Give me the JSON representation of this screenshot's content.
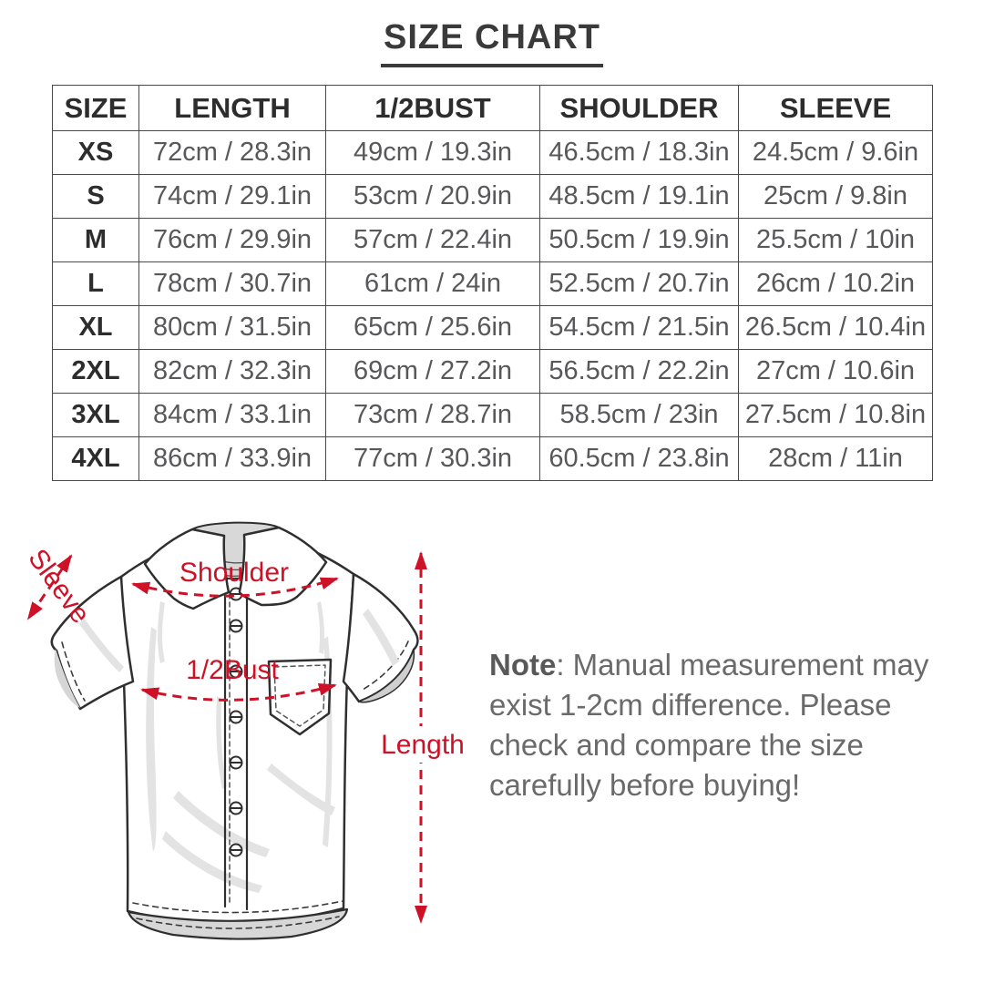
{
  "title": "SIZE CHART",
  "chart_data": {
    "type": "table",
    "title": "SIZE CHART",
    "columns": [
      "SIZE",
      "LENGTH",
      "1/2BUST",
      "SHOULDER",
      "SLEEVE"
    ],
    "rows": [
      [
        "XS",
        "72cm / 28.3in",
        "49cm / 19.3in",
        "46.5cm / 18.3in",
        "24.5cm / 9.6in"
      ],
      [
        "S",
        "74cm / 29.1in",
        "53cm / 20.9in",
        "48.5cm / 19.1in",
        "25cm / 9.8in"
      ],
      [
        "M",
        "76cm / 29.9in",
        "57cm / 22.4in",
        "50.5cm / 19.9in",
        "25.5cm / 10in"
      ],
      [
        "L",
        "78cm / 30.7in",
        "61cm / 24in",
        "52.5cm / 20.7in",
        "26cm / 10.2in"
      ],
      [
        "XL",
        "80cm / 31.5in",
        "65cm / 25.6in",
        "54.5cm / 21.5in",
        "26.5cm / 10.4in"
      ],
      [
        "2XL",
        "82cm / 32.3in",
        "69cm / 27.2in",
        "56.5cm / 22.2in",
        "27cm / 10.6in"
      ],
      [
        "3XL",
        "84cm / 33.1in",
        "73cm / 28.7in",
        "58.5cm / 23in",
        "27.5cm / 10.8in"
      ],
      [
        "4XL",
        "86cm / 33.9in",
        "77cm / 30.3in",
        "60.5cm / 23.8in",
        "28cm / 11in"
      ]
    ]
  },
  "diagram": {
    "labels": {
      "sleeve": "Sleeve",
      "shoulder": "Shoulder",
      "half_bust": "1/2Bust",
      "length": "Length"
    }
  },
  "note": {
    "prefix": "Note",
    "line1_rest": ": Manual measurement may",
    "line2": "exist 1-2cm difference. Please",
    "line3": "check and compare the size",
    "line4": "carefully before buying!"
  },
  "colors": {
    "accent_red": "#CE1126",
    "table_border": "#4a4a4a",
    "heading_text": "#2d2d2d",
    "cell_text": "#58585a",
    "note_text": "#6a6a6a",
    "shirt_line": "#2f2f2f",
    "shade_gray": "#e3e3e3"
  }
}
